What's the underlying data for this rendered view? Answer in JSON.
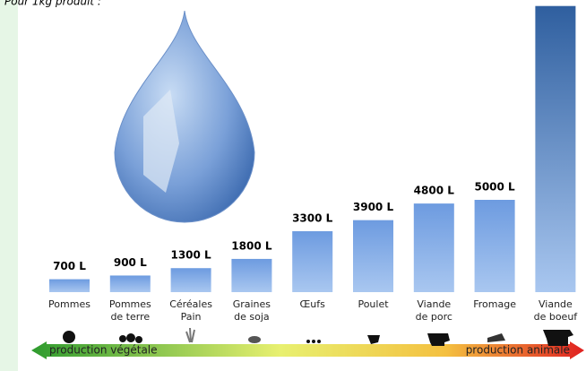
{
  "chart_data": {
    "type": "bar",
    "title": "Pour 1kg produit :",
    "categories": [
      "Pommes",
      "Pommes\nde terre",
      "Céréales\nPain",
      "Graines\nde soja",
      "Œufs",
      "Poulet",
      "Viande\nde porc",
      "Fromage",
      "Viande\nde boeuf"
    ],
    "values": [
      700,
      900,
      1300,
      1800,
      3300,
      3900,
      4800,
      5000,
      15500
    ],
    "value_labels": [
      "700 L",
      "900 L",
      "1300 L",
      "1800 L",
      "3300 L",
      "3900 L",
      "4800 L",
      "5000 L",
      null
    ],
    "color": "#7fa8e0",
    "arrow_left_label": "production végétale",
    "arrow_right_label": "production animale"
  }
}
